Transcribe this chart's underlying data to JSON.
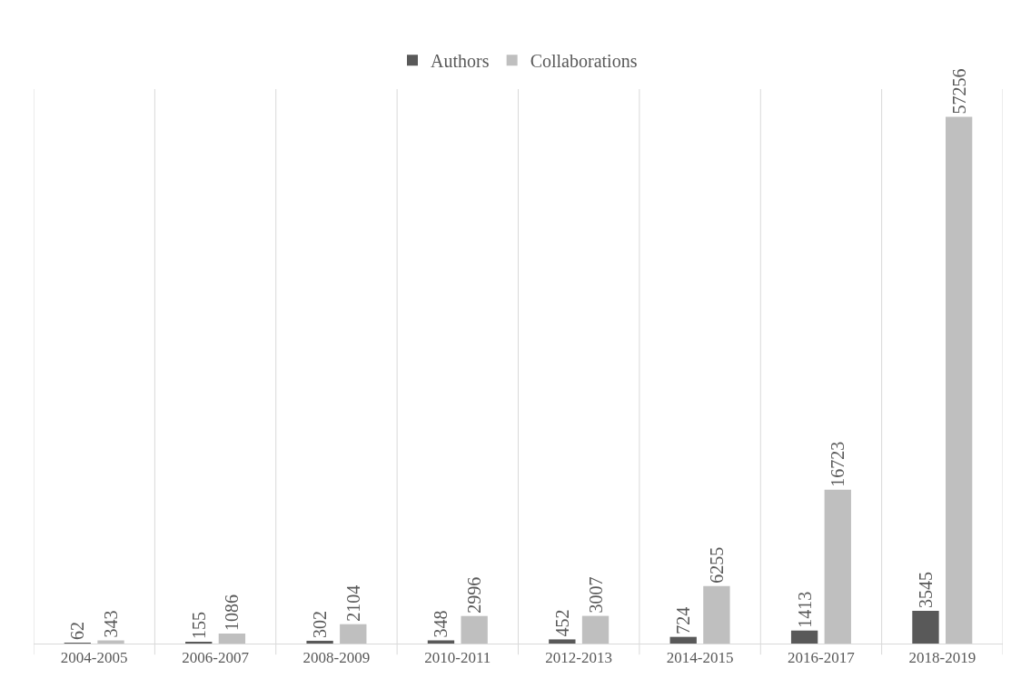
{
  "chart_data": {
    "type": "bar",
    "categories": [
      "2004-2005",
      "2006-2007",
      "2008-2009",
      "2010-2011",
      "2012-2013",
      "2014-2015",
      "2016-2017",
      "2018-2019"
    ],
    "series": [
      {
        "name": "Authors",
        "color": "#595959",
        "values": [
          62,
          155,
          302,
          348,
          452,
          724,
          1413,
          3545
        ]
      },
      {
        "name": "Collaborations",
        "color": "#bfbfbf",
        "values": [
          343,
          1086,
          2104,
          2996,
          3007,
          6255,
          16723,
          57256
        ]
      }
    ],
    "data_labels": true,
    "grid": "x",
    "legend": "top"
  }
}
